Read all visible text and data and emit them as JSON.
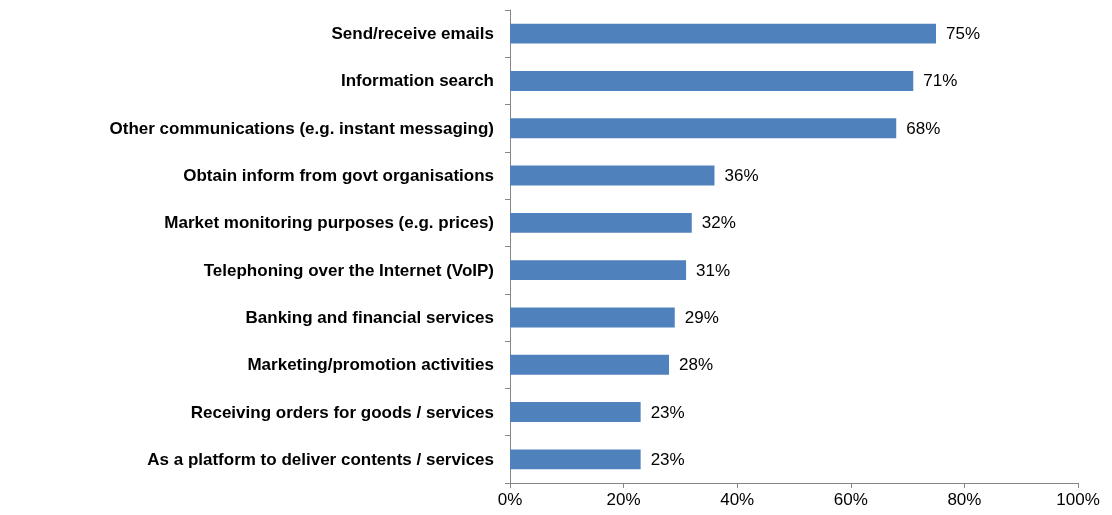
{
  "chart_data": {
    "type": "bar",
    "orientation": "horizontal",
    "categories": [
      "Send/receive emails",
      "Information search",
      "Other communications (e.g. instant messaging)",
      "Obtain inform from govt organisations",
      "Market monitoring purposes (e.g. prices)",
      "Telephoning over the Internet (VoIP)",
      "Banking and financial services",
      "Marketing/promotion activities",
      "Receiving orders for goods / services",
      "As a platform to deliver contents / services"
    ],
    "values": [
      75,
      71,
      68,
      36,
      32,
      31,
      29,
      28,
      23,
      23
    ],
    "value_labels": [
      "75%",
      "71%",
      "68%",
      "36%",
      "32%",
      "31%",
      "29%",
      "28%",
      "23%",
      "23%"
    ],
    "color": "#4f81bd",
    "xlim": [
      0,
      100
    ],
    "xticks": [
      {
        "value": 0,
        "label": "0%"
      },
      {
        "value": 20,
        "label": "20%"
      },
      {
        "value": 40,
        "label": "40%"
      },
      {
        "value": 60,
        "label": "60%"
      },
      {
        "value": 80,
        "label": "80%"
      },
      {
        "value": 100,
        "label": "100%"
      }
    ],
    "grid": false
  }
}
